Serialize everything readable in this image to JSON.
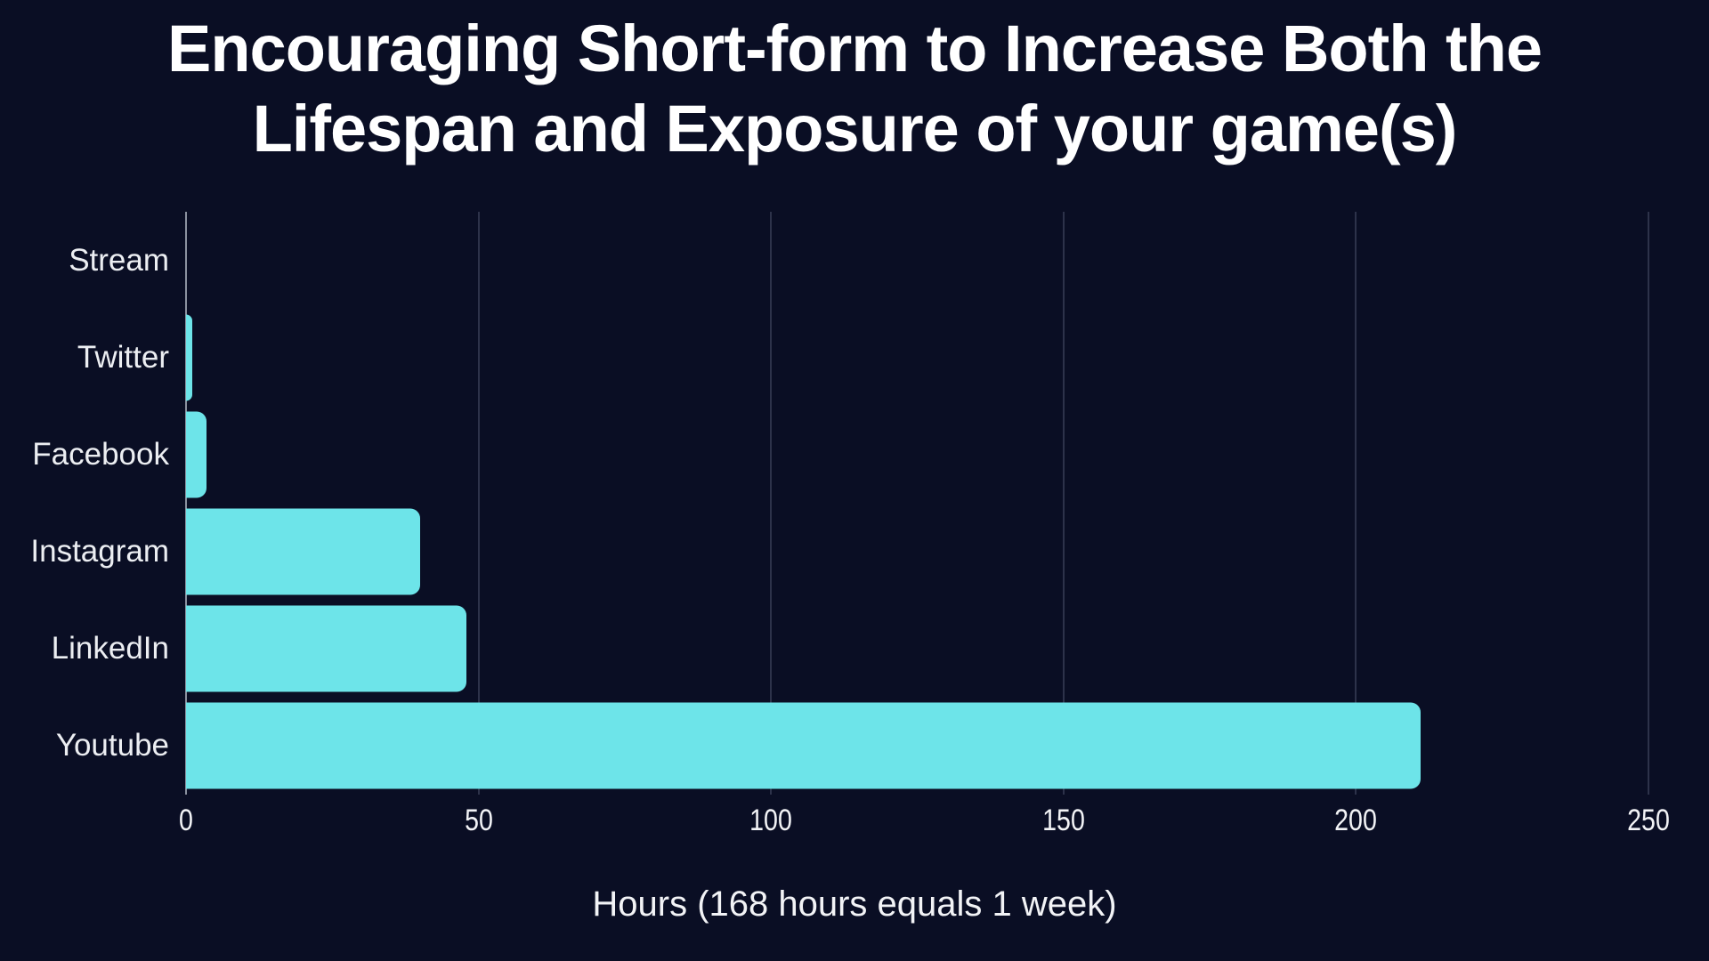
{
  "title": {
    "line1": "Encouraging Short-form to Increase Both the",
    "line2": "Lifespan and Exposure of your game(s)"
  },
  "chart_data": {
    "type": "bar",
    "orientation": "horizontal",
    "title": "Encouraging Short-form to Increase Both the Lifespan and Exposure of your game(s)",
    "xlabel": "Hours (168 hours equals 1 week)",
    "ylabel": "",
    "categories": [
      "Stream",
      "Twitter",
      "Facebook",
      "Instagram",
      "LinkedIn",
      "Youtube"
    ],
    "values": [
      0,
      1,
      3.5,
      40,
      48,
      211
    ],
    "x_ticks": [
      0,
      50,
      100,
      150,
      200,
      250
    ],
    "xlim": [
      0,
      250
    ],
    "grid": "vertical-lines-at-ticks",
    "legend": false,
    "colors": {
      "background": "#0a0e24",
      "bar": "#6de4e9",
      "axis_line": "#8b919f",
      "gridline": "#2d324a",
      "tick_text": "#f2f3f6",
      "category_text": "#eceef2",
      "title_text": "#ffffff"
    }
  }
}
